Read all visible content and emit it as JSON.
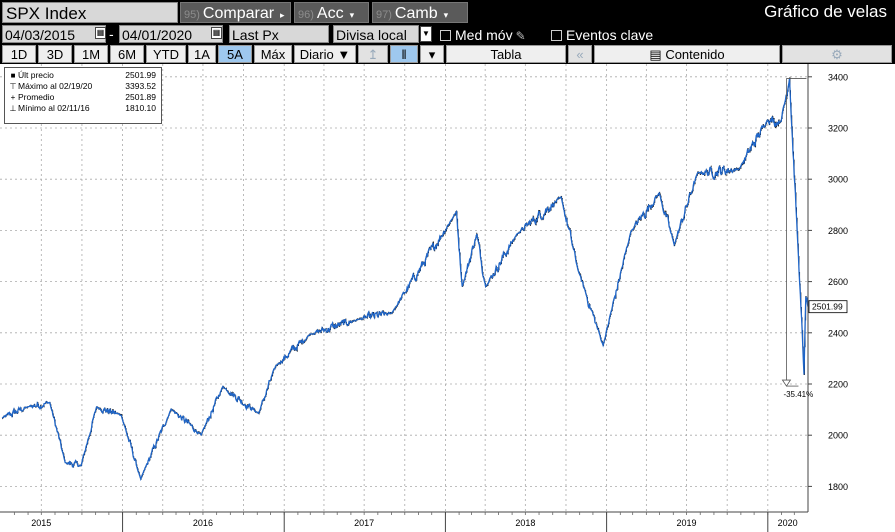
{
  "header": {
    "ticker": "SPX Index",
    "menus": [
      {
        "num": "95)",
        "label": "Comparar",
        "arrow": "▸"
      },
      {
        "num": "96)",
        "label": "Acc",
        "arrow": "▾"
      },
      {
        "num": "97)",
        "label": "Camb",
        "arrow": "▾"
      }
    ],
    "panel_title": "Gráfico de velas"
  },
  "controls": {
    "start_date": "04/03/2015",
    "end_date": "04/01/2020",
    "date_separator": "-",
    "price_field": "Last Px",
    "currency": "Divisa local",
    "moving_avg_label": "Med móv",
    "events_label": "Eventos clave"
  },
  "toolbar": {
    "periods": [
      "1D",
      "3D",
      "1M",
      "6M",
      "YTD",
      "1A",
      "5A",
      "Máx"
    ],
    "active_period": "5A",
    "frequency": "Diario ▼",
    "table_label": "Tabla",
    "collapse_label": "«",
    "content_label": "Contenido",
    "settings_label": "⚙"
  },
  "legend": [
    {
      "symbol": "■",
      "label": "Últ precio",
      "value": "2501.99"
    },
    {
      "symbol": "⊤",
      "label": "Máximo al 02/19/20",
      "value": "3393.52"
    },
    {
      "symbol": "+",
      "label": "Promedio",
      "value": "2501.89"
    },
    {
      "symbol": "⊥",
      "label": "Mínimo al 02/11/16",
      "value": "1810.10"
    }
  ],
  "chart_data": {
    "type": "line",
    "x_unit": "date",
    "x": [
      "2015-04-03",
      "2015-06-01",
      "2015-07-20",
      "2015-08-24",
      "2015-09-29",
      "2015-11-03",
      "2015-12-29",
      "2016-02-11",
      "2016-04-20",
      "2016-06-27",
      "2016-08-15",
      "2016-11-04",
      "2016-12-13",
      "2017-03-01",
      "2017-06-19",
      "2017-09-01",
      "2018-01-26",
      "2018-02-08",
      "2018-03-13",
      "2018-04-02",
      "2018-06-12",
      "2018-09-20",
      "2018-10-29",
      "2018-12-24",
      "2019-02-25",
      "2019-04-30",
      "2019-06-03",
      "2019-07-26",
      "2019-10-28",
      "2019-12-31",
      "2020-01-31",
      "2020-02-19",
      "2020-03-09",
      "2020-03-23",
      "2020-03-27",
      "2020-04-01"
    ],
    "series": [
      {
        "name": "Últ precio",
        "values": [
          2067,
          2111,
          2128,
          1893,
          1881,
          2110,
          2078,
          1829,
          2102,
          2001,
          2190,
          2085,
          2271,
          2395,
          2453,
          2476,
          2873,
          2581,
          2786,
          2581,
          2786,
          2930,
          2641,
          2351,
          2796,
          2946,
          2744,
          3025,
          3039,
          3231,
          3226,
          3393,
          2747,
          2237,
          2541,
          2502
        ]
      }
    ],
    "xlim": [
      "2015-04-03",
      "2020-04-01"
    ],
    "ylim": [
      1700,
      3450
    ],
    "y_ticks": [
      1800,
      2000,
      2200,
      2400,
      2600,
      2800,
      3000,
      3200,
      3400
    ],
    "x_tick_labels": [
      {
        "label": "2015",
        "date": "2015-07-01"
      },
      {
        "label": "2016",
        "date": "2016-07-01"
      },
      {
        "label": "2017",
        "date": "2017-07-01"
      },
      {
        "label": "2018",
        "date": "2018-07-01"
      },
      {
        "label": "2019",
        "date": "2019-07-01"
      },
      {
        "label": "2020",
        "date": "2020-02-15"
      }
    ],
    "year_boundaries": [
      "2016-01-01",
      "2017-01-01",
      "2018-01-01",
      "2019-01-01",
      "2020-01-01"
    ],
    "grid": true,
    "last_price_label": "2501.99",
    "drawdown_label": "-35.41%",
    "drawdown_from": 3393.52,
    "drawdown_to": 2191.86,
    "line_color": "#1f66c9",
    "candle_color": "#000000"
  }
}
